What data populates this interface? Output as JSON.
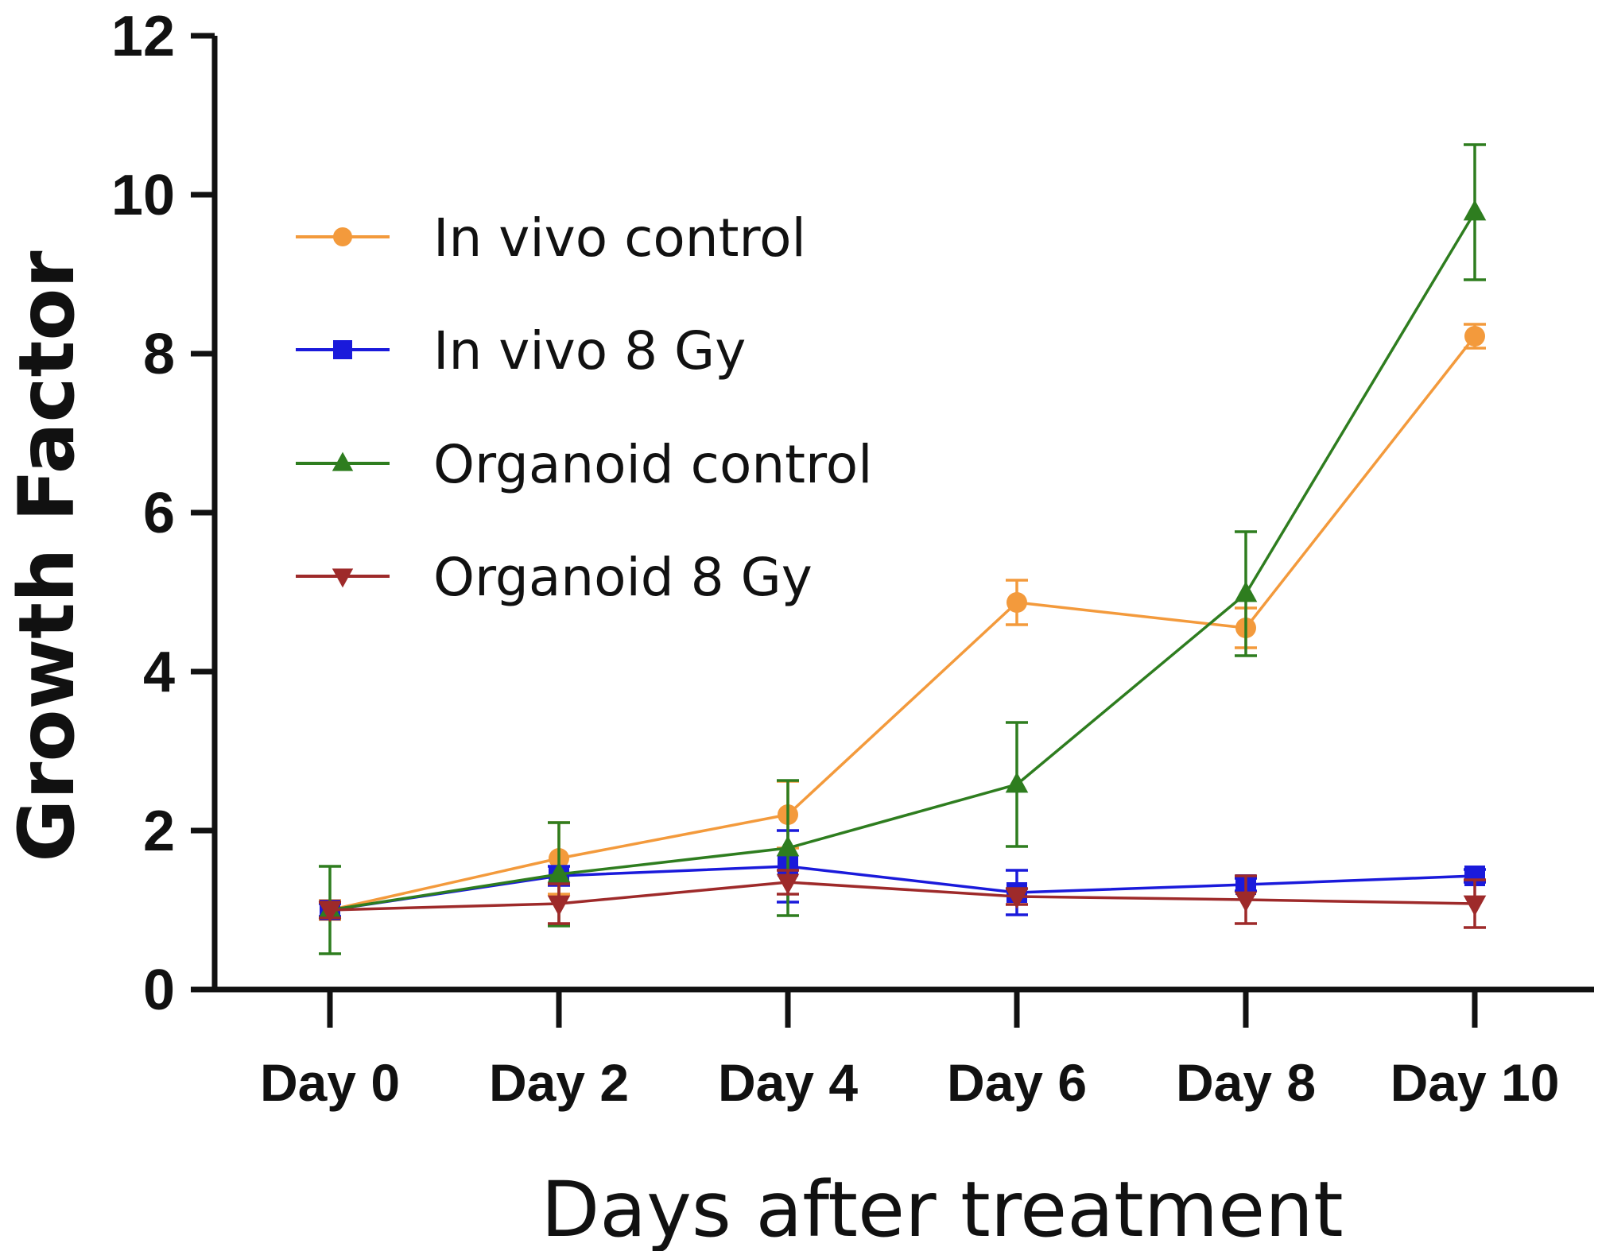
{
  "chart_data": {
    "type": "line",
    "title": "",
    "xlabel": "Days after treatment",
    "ylabel": "Growth Factor",
    "ylim": [
      0,
      12
    ],
    "yticks": [
      0,
      2,
      4,
      6,
      8,
      10,
      12
    ],
    "grid": false,
    "legend_position": "top-left",
    "categories": [
      "Day 0",
      "Day 2",
      "Day 4",
      "Day 6",
      "Day 8",
      "Day 10"
    ],
    "series": [
      {
        "name": "In vivo control",
        "color": "#f39a3c",
        "marker": "circle",
        "values": [
          1.0,
          1.65,
          2.2,
          4.87,
          4.55,
          8.22
        ],
        "error": [
          0.12,
          0.45,
          0.42,
          0.28,
          0.25,
          0.15
        ]
      },
      {
        "name": "In vivo 8 Gy",
        "color": "#1a1adb",
        "marker": "square",
        "values": [
          1.0,
          1.43,
          1.55,
          1.22,
          1.32,
          1.43
        ],
        "error": [
          0.08,
          0.12,
          0.45,
          0.28,
          0.08,
          0.08
        ]
      },
      {
        "name": "Organoid control",
        "color": "#2e7d1f",
        "marker": "triangle-up",
        "values": [
          1.0,
          1.45,
          1.78,
          2.58,
          4.98,
          9.78
        ],
        "error": [
          0.55,
          0.65,
          0.85,
          0.78,
          0.78,
          0.85
        ]
      },
      {
        "name": "Organoid 8 Gy",
        "color": "#9e2a2a",
        "marker": "triangle-down",
        "values": [
          1.0,
          1.08,
          1.35,
          1.17,
          1.13,
          1.08
        ],
        "error": [
          0.1,
          0.25,
          0.15,
          0.1,
          0.3,
          0.3
        ]
      }
    ]
  }
}
